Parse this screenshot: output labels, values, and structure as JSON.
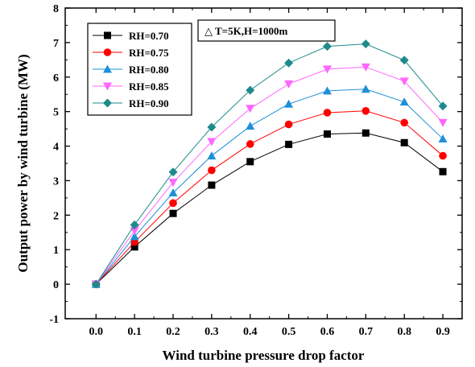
{
  "chart_data": {
    "type": "line",
    "x": [
      0.0,
      0.1,
      0.2,
      0.3,
      0.4,
      0.5,
      0.6,
      0.7,
      0.8,
      0.9
    ],
    "x_tick_labels": [
      "0.0",
      "0.1",
      "0.2",
      "0.3",
      "0.4",
      "0.5",
      "0.6",
      "0.7",
      "0.8",
      "0.9"
    ],
    "y_ticks": [
      -1,
      0,
      1,
      2,
      3,
      4,
      5,
      6,
      7,
      8
    ],
    "xlim": [
      -0.08,
      0.95
    ],
    "ylim": [
      -1,
      8
    ],
    "xlabel": "Wind turbine pressure drop factor",
    "ylabel": "Output power by wind turbine (MW)",
    "annotation": "△ T=5K,H=1000m",
    "legend_position": "top-left",
    "grid": false,
    "series": [
      {
        "name": "RH=0.70",
        "color": "#000000",
        "marker": "square",
        "values": [
          0,
          1.08,
          2.05,
          2.87,
          3.55,
          4.05,
          4.35,
          4.38,
          4.1,
          3.26
        ]
      },
      {
        "name": "RH=0.75",
        "color": "#ff0000",
        "marker": "circle",
        "values": [
          0,
          1.22,
          2.35,
          3.3,
          4.06,
          4.63,
          4.97,
          5.02,
          4.68,
          3.72
        ]
      },
      {
        "name": "RH=0.80",
        "color": "#1e90d8",
        "marker": "triangle-up",
        "values": [
          0,
          1.38,
          2.65,
          3.72,
          4.58,
          5.22,
          5.6,
          5.65,
          5.28,
          4.21
        ]
      },
      {
        "name": "RH=0.85",
        "color": "#ff66ff",
        "marker": "triangle-down",
        "values": [
          0,
          1.55,
          2.95,
          4.13,
          5.09,
          5.8,
          6.23,
          6.29,
          5.88,
          4.68
        ]
      },
      {
        "name": "RH=0.90",
        "color": "#1f8a8a",
        "marker": "diamond",
        "values": [
          0,
          1.72,
          3.25,
          4.55,
          5.62,
          6.41,
          6.89,
          6.96,
          6.49,
          5.16
        ]
      }
    ]
  }
}
